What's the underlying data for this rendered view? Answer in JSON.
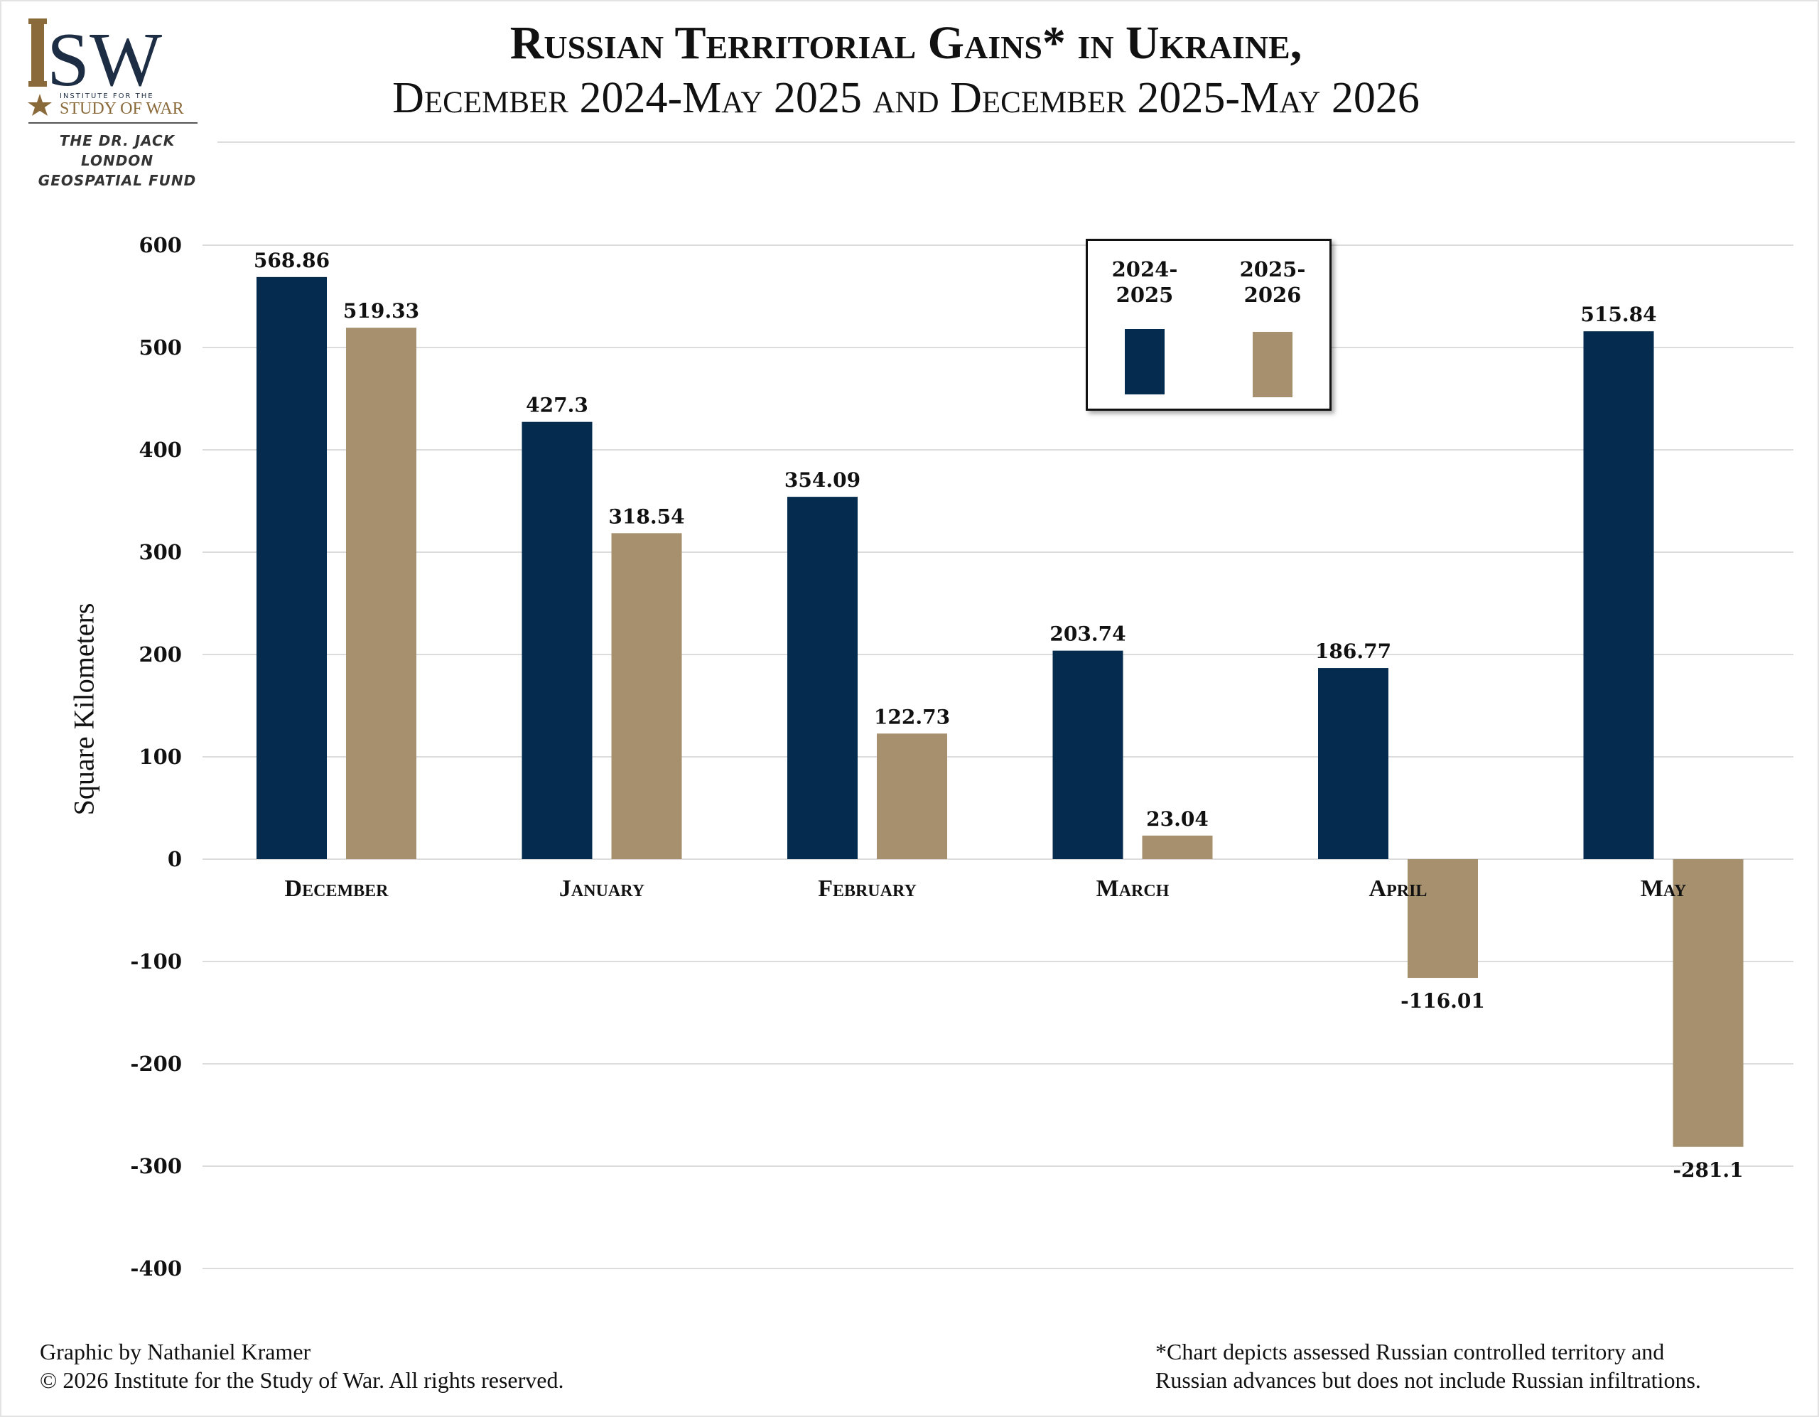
{
  "branding": {
    "logo_text": "ISW",
    "logo_subtitle_top": "INSTITUTE FOR THE",
    "logo_subtitle_bottom": "STUDY OF WAR",
    "fund_line1": "THE DR. JACK LONDON",
    "fund_line2": "GEOSPATIAL FUND"
  },
  "colors": {
    "navy": "#052c4f",
    "tan": "#a6906e",
    "grid": "#dcdcdc",
    "logo_navy": "#1d2d44",
    "logo_gold": "#8a6a3a"
  },
  "legend": {
    "series1_label_line1": "2024-",
    "series1_label_line2": "2025",
    "series2_label_line1": "2025-",
    "series2_label_line2": "2026"
  },
  "footer": {
    "credit": "Graphic by Nathaniel Kramer",
    "copyright": "© 2026 Institute for the Study of War. All rights reserved.",
    "note_line1": "*Chart depicts assessed Russian controlled territory and",
    "note_line2": "Russian advances but does not include Russian infiltrations."
  },
  "chart_data": {
    "type": "bar",
    "title": "Russian Territorial Gains* in Ukraine,",
    "subtitle": "December 2024-May 2025 and December 2025-May 2026",
    "xlabel": "",
    "ylabel": "Square Kilometers",
    "categories": [
      "December",
      "January",
      "February",
      "March",
      "April",
      "May"
    ],
    "series": [
      {
        "name": "2024-2025",
        "color": "#052c4f",
        "values": [
          568.86,
          427.3,
          354.09,
          203.74,
          186.77,
          515.84
        ]
      },
      {
        "name": "2025-2026",
        "color": "#a6906e",
        "values": [
          519.33,
          318.54,
          122.73,
          23.04,
          -116.01,
          -281.1
        ]
      }
    ],
    "data_labels": [
      [
        "568.86",
        "427.3",
        "354.09",
        "203.74",
        "186.77",
        "515.84"
      ],
      [
        "519.33",
        "318.54",
        "122.73",
        "23.04",
        "-116.01",
        "-281.1"
      ]
    ],
    "yticks": [
      600,
      500,
      400,
      300,
      200,
      100,
      0,
      -100,
      -200,
      -300,
      -400
    ],
    "ylim": [
      -400,
      600
    ],
    "grid": true,
    "legend_position": "top-right"
  }
}
